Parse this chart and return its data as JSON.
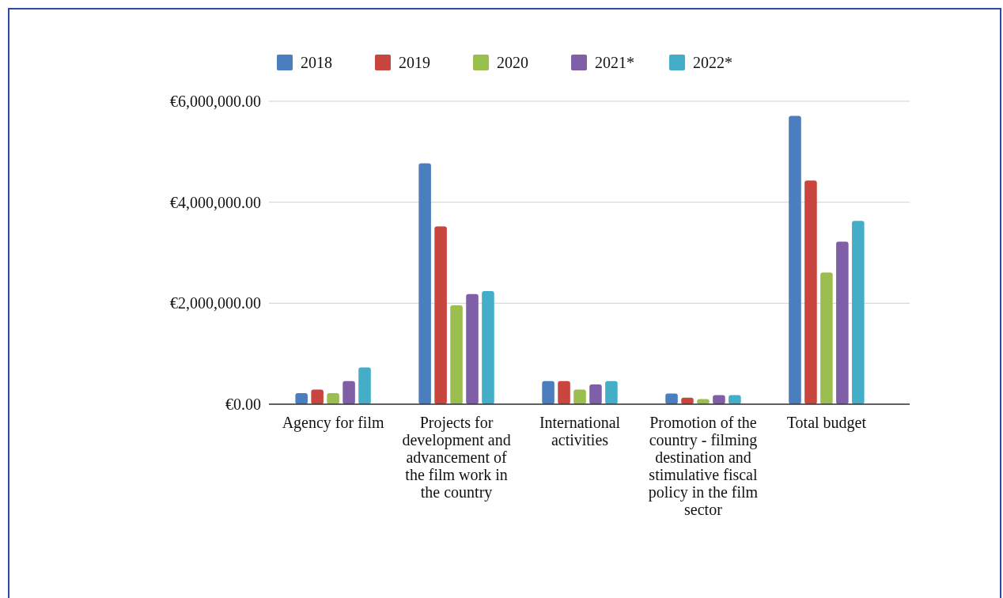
{
  "chart_data": {
    "type": "bar",
    "categories": [
      "Agency for film",
      "Projects for development and advancement of the film work in the country",
      "International activities",
      "Promotion of the country - filming destination and stimulative fiscal policy in the film sector",
      "Total budget"
    ],
    "series": [
      {
        "name": "2018",
        "color": "#4a7ebf",
        "values": [
          220000,
          4770000,
          460000,
          210000,
          5710000
        ]
      },
      {
        "name": "2019",
        "color": "#c9463f",
        "values": [
          290000,
          3520000,
          460000,
          130000,
          4430000
        ]
      },
      {
        "name": "2020",
        "color": "#9bbf4e",
        "values": [
          220000,
          1960000,
          290000,
          100000,
          2610000
        ]
      },
      {
        "name": "2021*",
        "color": "#7f5fa8",
        "values": [
          460000,
          2180000,
          390000,
          180000,
          3220000
        ]
      },
      {
        "name": "2022*",
        "color": "#44aec8",
        "values": [
          730000,
          2240000,
          460000,
          180000,
          3630000
        ]
      }
    ],
    "ylim": [
      0,
      6000000
    ],
    "yticks": [
      {
        "value": 0,
        "label": "€0.00"
      },
      {
        "value": 2000000,
        "label": "€2,000,000.00"
      },
      {
        "value": 4000000,
        "label": "€4,000,000.00"
      },
      {
        "value": 6000000,
        "label": "€6,000,000.00"
      }
    ],
    "grid": "y",
    "legend": "top"
  }
}
